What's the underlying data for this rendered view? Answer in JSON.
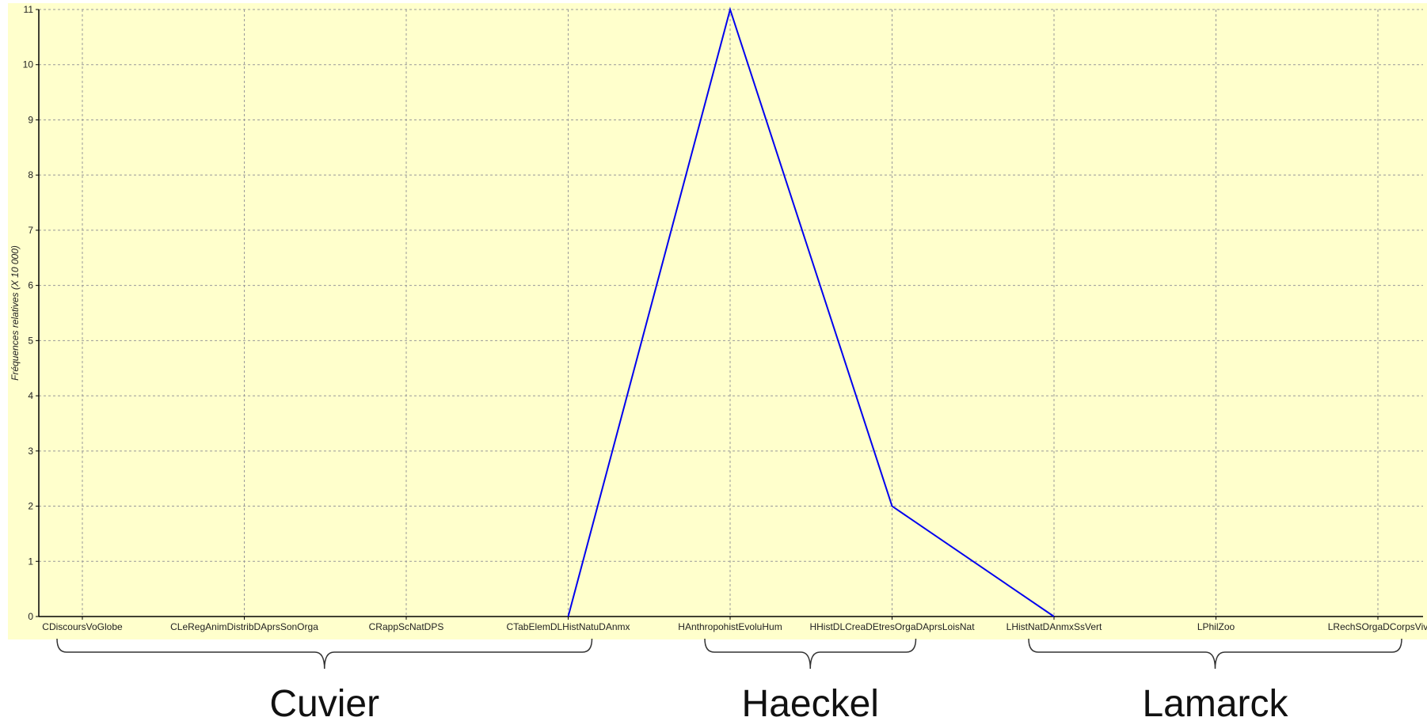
{
  "chart_data": {
    "type": "line",
    "ylabel": "Fréquences relatives (X 10 000)",
    "xlabel": "",
    "ylim": [
      0,
      11
    ],
    "yticks": [
      0,
      1,
      2,
      3,
      4,
      5,
      6,
      7,
      8,
      9,
      10,
      11
    ],
    "grid": true,
    "categories": [
      "CDiscoursVoGlobe",
      "CLeRegAnimDistribDAprsSonOrga",
      "CRappScNatDPS",
      "CTabElemDLHistNatuDAnmx",
      "HAnthropohistEvoluHum",
      "HHistDLCreaDEtresOrgaDAprsLoisNat",
      "LHistNatDAnmxSsVert",
      "LPhilZoo",
      "LRechSOrgaDCorpsViv"
    ],
    "series": [
      {
        "values": [
          null,
          null,
          null,
          0,
          11,
          2,
          0,
          null,
          null
        ]
      }
    ],
    "groups": [
      {
        "label": "Cuvier",
        "from": 0,
        "to": 3
      },
      {
        "label": "Haeckel",
        "from": 4,
        "to": 5
      },
      {
        "label": "Lamarck",
        "from": 6,
        "to": 8
      }
    ],
    "colors": {
      "plot_background": "#ffffcc",
      "line": "#0000ee",
      "grid": "#999999"
    }
  }
}
